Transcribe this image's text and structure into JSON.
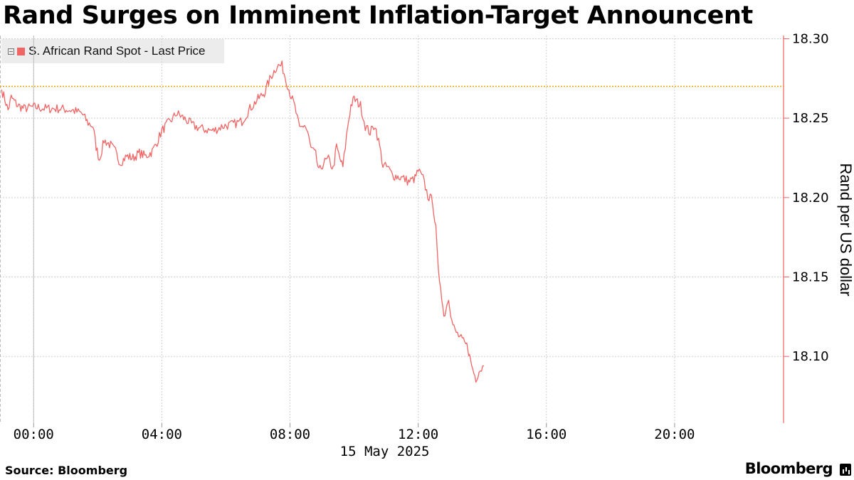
{
  "chart_data": {
    "type": "line",
    "title": "Rand Surges on Imminent Inflation-Target Announcent",
    "ylabel": "Rand per US dollar",
    "xlabel": "15 May 2025",
    "x_ticks": [
      "00:00",
      "04:00",
      "08:00",
      "12:00",
      "16:00",
      "20:00"
    ],
    "x_tick_hours": [
      0,
      4,
      8,
      12,
      16,
      20
    ],
    "x_range": [
      -1.05,
      23.4
    ],
    "y_ticks": [
      "18.10",
      "18.15",
      "18.20",
      "18.25",
      "18.30"
    ],
    "ylim": [
      18.058,
      18.302
    ],
    "reference_line": {
      "value": 18.27,
      "color": "#f0a400",
      "style": "dotted"
    },
    "grid": true,
    "legend_position": "top-left",
    "series": [
      {
        "name": "S. African Rand Spot - Last Price",
        "color": "#f06464",
        "points": [
          [
            -1.0,
            18.268
          ],
          [
            -0.9,
            18.262
          ],
          [
            -0.8,
            18.255
          ],
          [
            -0.7,
            18.263
          ],
          [
            -0.5,
            18.258
          ],
          [
            -0.3,
            18.256
          ],
          [
            0.0,
            18.257
          ],
          [
            0.4,
            18.256
          ],
          [
            0.8,
            18.256
          ],
          [
            1.2,
            18.255
          ],
          [
            1.5,
            18.253
          ],
          [
            1.7,
            18.247
          ],
          [
            1.85,
            18.245
          ],
          [
            1.95,
            18.232
          ],
          [
            2.05,
            18.224
          ],
          [
            2.2,
            18.236
          ],
          [
            2.4,
            18.233
          ],
          [
            2.55,
            18.229
          ],
          [
            2.7,
            18.222
          ],
          [
            2.9,
            18.226
          ],
          [
            3.1,
            18.225
          ],
          [
            3.3,
            18.228
          ],
          [
            3.5,
            18.226
          ],
          [
            3.7,
            18.229
          ],
          [
            3.85,
            18.235
          ],
          [
            4.0,
            18.242
          ],
          [
            4.2,
            18.247
          ],
          [
            4.35,
            18.25
          ],
          [
            4.45,
            18.253
          ],
          [
            4.55,
            18.252
          ],
          [
            4.75,
            18.249
          ],
          [
            5.0,
            18.245
          ],
          [
            5.3,
            18.243
          ],
          [
            5.6,
            18.242
          ],
          [
            5.9,
            18.245
          ],
          [
            6.2,
            18.246
          ],
          [
            6.5,
            18.248
          ],
          [
            6.75,
            18.256
          ],
          [
            7.0,
            18.262
          ],
          [
            7.2,
            18.266
          ],
          [
            7.4,
            18.276
          ],
          [
            7.6,
            18.283
          ],
          [
            7.75,
            18.283
          ],
          [
            7.85,
            18.276
          ],
          [
            8.0,
            18.266
          ],
          [
            8.15,
            18.257
          ],
          [
            8.3,
            18.243
          ],
          [
            8.45,
            18.246
          ],
          [
            8.55,
            18.241
          ],
          [
            8.65,
            18.231
          ],
          [
            8.8,
            18.227
          ],
          [
            8.9,
            18.216
          ],
          [
            9.05,
            18.222
          ],
          [
            9.2,
            18.224
          ],
          [
            9.35,
            18.218
          ],
          [
            9.45,
            18.232
          ],
          [
            9.55,
            18.225
          ],
          [
            9.65,
            18.219
          ],
          [
            9.8,
            18.245
          ],
          [
            9.9,
            18.258
          ],
          [
            10.0,
            18.262
          ],
          [
            10.2,
            18.258
          ],
          [
            10.35,
            18.245
          ],
          [
            10.5,
            18.241
          ],
          [
            10.65,
            18.246
          ],
          [
            10.8,
            18.232
          ],
          [
            10.9,
            18.22
          ],
          [
            11.05,
            18.219
          ],
          [
            11.2,
            18.214
          ],
          [
            11.4,
            18.213
          ],
          [
            11.55,
            18.212
          ],
          [
            11.7,
            18.21
          ],
          [
            11.9,
            18.212
          ],
          [
            12.0,
            18.217
          ],
          [
            12.15,
            18.212
          ],
          [
            12.3,
            18.201
          ],
          [
            12.45,
            18.198
          ],
          [
            12.55,
            18.18
          ],
          [
            12.63,
            18.152
          ],
          [
            12.7,
            18.145
          ],
          [
            12.8,
            18.125
          ],
          [
            12.9,
            18.133
          ],
          [
            12.95,
            18.138
          ],
          [
            13.05,
            18.122
          ],
          [
            13.15,
            18.116
          ],
          [
            13.3,
            18.112
          ],
          [
            13.45,
            18.108
          ],
          [
            13.55,
            18.106
          ],
          [
            13.6,
            18.1
          ],
          [
            13.7,
            18.092
          ],
          [
            13.8,
            18.086
          ],
          [
            13.9,
            18.091
          ],
          [
            14.05,
            18.094
          ]
        ]
      }
    ]
  }
}
